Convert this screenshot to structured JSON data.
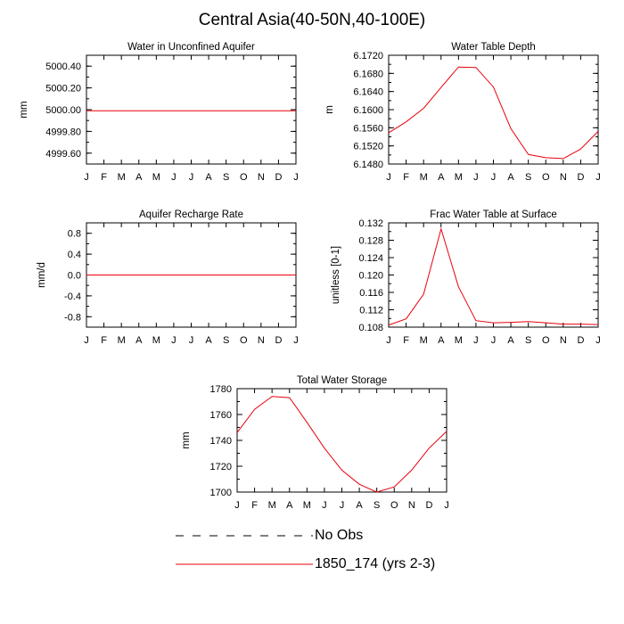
{
  "figure": {
    "title": "Central Asia(40-50N,40-100E)",
    "legend": [
      {
        "label": "No Obs",
        "style": "dashed",
        "color": "#000000"
      },
      {
        "label": "1850_174 (yrs 2-3)",
        "style": "solid",
        "color": "#e8000b"
      }
    ]
  },
  "chart_data": [
    {
      "id": "wa",
      "type": "line",
      "title": "Water in Unconfined Aquifer",
      "xlabel": "",
      "ylabel": "mm",
      "categories": [
        "J",
        "F",
        "M",
        "A",
        "M",
        "J",
        "J",
        "A",
        "S",
        "O",
        "N",
        "D",
        "J"
      ],
      "ylim": [
        4999.5,
        5000.5
      ],
      "yticks": [
        4999.6,
        4999.8,
        5000.0,
        5000.2,
        5000.4
      ],
      "ytick_labels": [
        "4999.60",
        "4999.80",
        "5000.00",
        "5000.20",
        "5000.40"
      ],
      "series": [
        {
          "name": "1850_174 (yrs 2-3)",
          "color": "#e8000b",
          "values": [
            4999.99,
            4999.99,
            4999.99,
            4999.99,
            4999.99,
            4999.99,
            4999.99,
            4999.99,
            4999.99,
            4999.99,
            4999.99,
            4999.99,
            4999.99
          ]
        }
      ]
    },
    {
      "id": "zwt",
      "type": "line",
      "title": "Water Table Depth",
      "xlabel": "",
      "ylabel": "m",
      "categories": [
        "J",
        "F",
        "M",
        "A",
        "M",
        "J",
        "J",
        "A",
        "S",
        "O",
        "N",
        "D",
        "J"
      ],
      "ylim": [
        6.148,
        6.172
      ],
      "yticks": [
        6.148,
        6.152,
        6.156,
        6.16,
        6.164,
        6.168,
        6.172
      ],
      "ytick_labels": [
        "6.1480",
        "6.1520",
        "6.1560",
        "6.1600",
        "6.1640",
        "6.1680",
        "6.1720"
      ],
      "series": [
        {
          "name": "1850_174 (yrs 2-3)",
          "color": "#e8000b",
          "values": [
            6.1549,
            6.1573,
            6.1603,
            6.1649,
            6.1694,
            6.1693,
            6.165,
            6.1558,
            6.1501,
            6.1494,
            6.1492,
            6.1513,
            6.1552
          ]
        }
      ]
    },
    {
      "id": "qrec",
      "type": "line",
      "title": "Aquifer Recharge Rate",
      "xlabel": "",
      "ylabel": "mm/d",
      "categories": [
        "J",
        "F",
        "M",
        "A",
        "M",
        "J",
        "J",
        "A",
        "S",
        "O",
        "N",
        "D",
        "J"
      ],
      "ylim": [
        -1.0,
        1.0
      ],
      "yticks": [
        -0.8,
        -0.4,
        0.0,
        0.4,
        0.8
      ],
      "ytick_labels": [
        "-0.8",
        "-0.4",
        "0.0",
        "0.4",
        "0.8"
      ],
      "series": [
        {
          "name": "1850_174 (yrs 2-3)",
          "color": "#e8000b",
          "values": [
            0,
            0,
            0,
            0,
            0,
            0,
            0,
            0,
            0,
            0,
            0,
            0,
            0
          ]
        }
      ]
    },
    {
      "id": "frac",
      "type": "line",
      "title": "Frac Water Table at Surface",
      "xlabel": "",
      "ylabel": "unitless [0-1]",
      "categories": [
        "J",
        "F",
        "M",
        "A",
        "M",
        "J",
        "J",
        "A",
        "S",
        "O",
        "N",
        "D",
        "J"
      ],
      "ylim": [
        0.108,
        0.132
      ],
      "yticks": [
        0.108,
        0.112,
        0.116,
        0.12,
        0.124,
        0.128,
        0.132
      ],
      "ytick_labels": [
        "0.108",
        "0.112",
        "0.116",
        "0.120",
        "0.124",
        "0.128",
        "0.132"
      ],
      "series": [
        {
          "name": "1850_174 (yrs 2-3)",
          "color": "#e8000b",
          "values": [
            0.1085,
            0.1099,
            0.1156,
            0.1306,
            0.1173,
            0.1095,
            0.109,
            0.1091,
            0.1093,
            0.109,
            0.1087,
            0.1087,
            0.1086
          ]
        }
      ]
    },
    {
      "id": "tws",
      "type": "line",
      "title": "Total Water Storage",
      "xlabel": "",
      "ylabel": "mm",
      "categories": [
        "J",
        "F",
        "M",
        "A",
        "M",
        "J",
        "J",
        "A",
        "S",
        "O",
        "N",
        "D",
        "J"
      ],
      "ylim": [
        1700,
        1780
      ],
      "yticks": [
        1700,
        1720,
        1740,
        1760,
        1780
      ],
      "ytick_labels": [
        "1700",
        "1720",
        "1740",
        "1760",
        "1780"
      ],
      "series": [
        {
          "name": "1850_174 (yrs 2-3)",
          "color": "#e8000b",
          "values": [
            1746,
            1764,
            1774,
            1773,
            1754,
            1734,
            1717,
            1706,
            1700,
            1704,
            1717,
            1734,
            1747
          ]
        }
      ]
    }
  ]
}
